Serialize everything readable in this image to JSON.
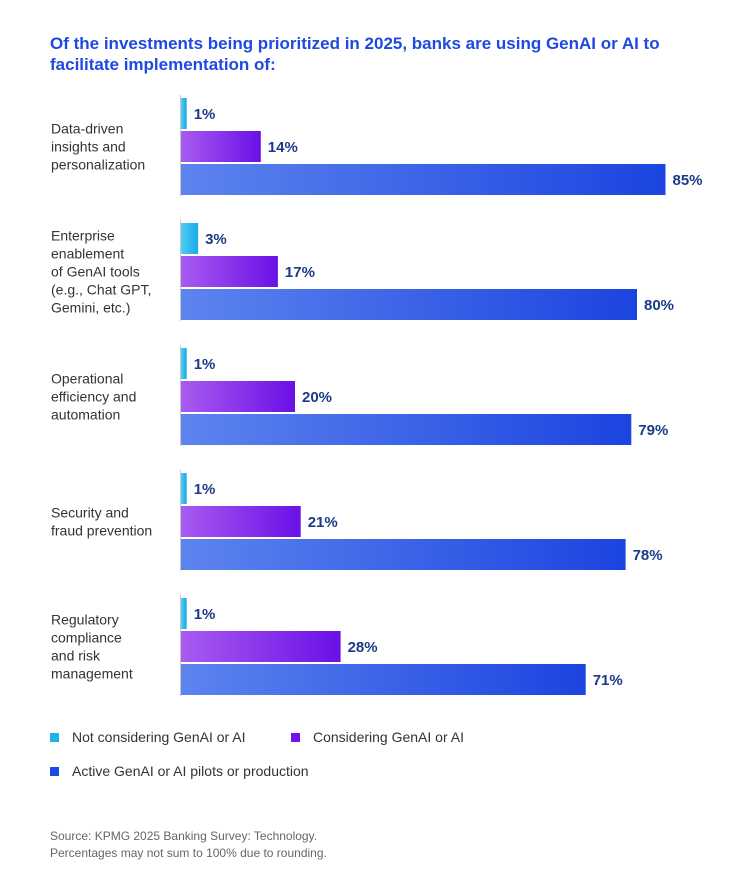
{
  "chart_data": {
    "type": "bar",
    "orientation": "horizontal",
    "title": "Of the investments being prioritized in 2025, banks are using GenAI or AI to facilitate implementation of:",
    "categories": [
      [
        "Data-driven",
        "insights and",
        "personalization"
      ],
      [
        "Enterprise",
        "enablement",
        "of GenAI tools",
        "(e.g., Chat GPT,",
        "Gemini, etc.)"
      ],
      [
        "Operational",
        "efficiency and",
        "automation"
      ],
      [
        "Security and",
        "fraud prevention"
      ],
      [
        "Regulatory",
        "compliance",
        "and risk",
        "management"
      ]
    ],
    "series": [
      {
        "name": "Not considering GenAI or AI",
        "values": [
          1,
          3,
          1,
          1,
          1
        ],
        "color": "#1fb3ec"
      },
      {
        "name": "Considering GenAI or AI",
        "values": [
          14,
          17,
          20,
          21,
          28
        ],
        "color": "#7213ea"
      },
      {
        "name": "Active GenAI or AI pilots or production",
        "values": [
          85,
          80,
          79,
          78,
          71
        ],
        "color": "#1e49e2"
      }
    ],
    "value_suffix": "%",
    "xlim": [
      0,
      100
    ],
    "grid": false,
    "legend_position": "bottom-left"
  },
  "source": {
    "line1": "Source: KPMG 2025 Banking Survey: Technology.",
    "line2": "Percentages may not sum to 100% due to rounding."
  }
}
